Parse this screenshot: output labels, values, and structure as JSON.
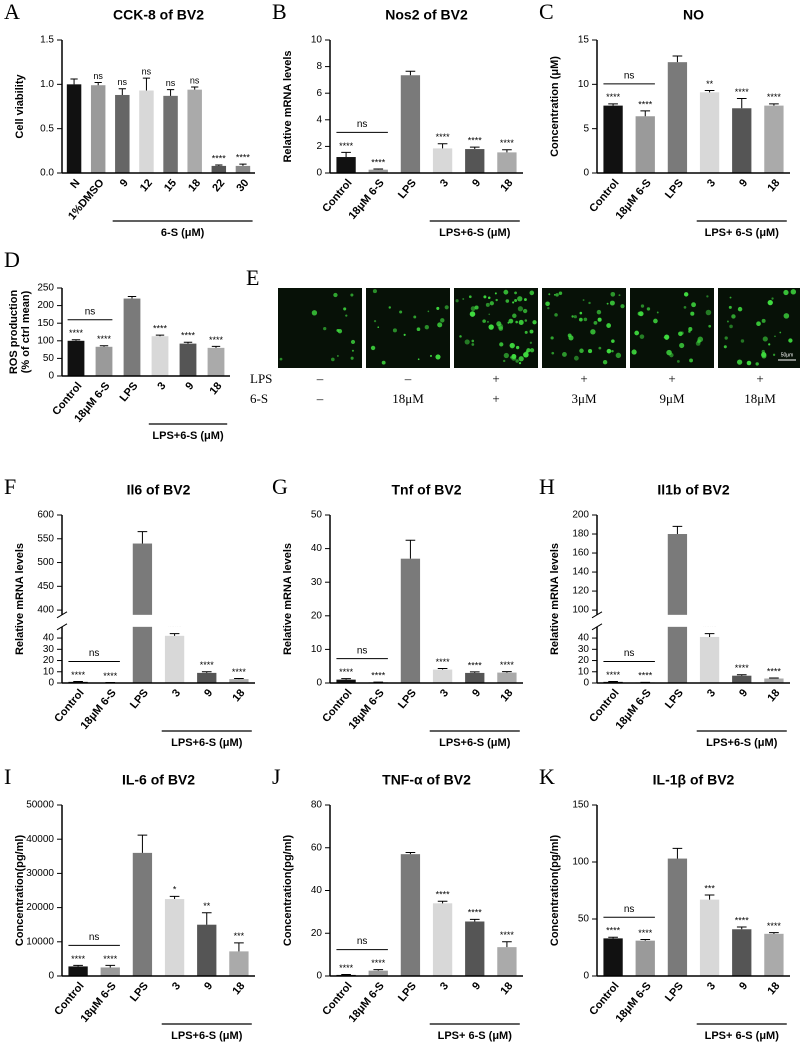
{
  "chart_data": [
    {
      "panel": "A",
      "type": "bar",
      "title": "CCK-8 of BV2",
      "ylabel": "Cell viability",
      "categories": [
        "N",
        "1%DMSO",
        "9",
        "12",
        "15",
        "18",
        "22",
        "30"
      ],
      "values": [
        1.0,
        0.99,
        0.88,
        0.93,
        0.87,
        0.94,
        0.08,
        0.08
      ],
      "errors": [
        0.06,
        0.03,
        0.07,
        0.14,
        0.07,
        0.03,
        0.01,
        0.02
      ],
      "colors": [
        "#111111",
        "#9a9a9a",
        "#666666",
        "#d8d8d8",
        "#707070",
        "#aaaaaa",
        "#555555",
        "#888888"
      ],
      "annotations": [
        null,
        "ns",
        "ns",
        "ns",
        "ns",
        "ns",
        "****",
        "****"
      ],
      "group_label": "6-S (μM)",
      "ylim": [
        0,
        1.5
      ],
      "yticks": [
        {
          "value": 0,
          "label": "0.0"
        },
        {
          "value": 0.5,
          "label": "0.5"
        },
        {
          "value": 1,
          "label": "1.0"
        },
        {
          "value": 1.5,
          "label": "1.5"
        }
      ]
    },
    {
      "panel": "B",
      "type": "bar",
      "title": "Nos2 of BV2",
      "ylabel": "Relative mRNA levels",
      "categories": [
        "Control",
        "18μM 6-S",
        "LPS",
        "3",
        "9",
        "18"
      ],
      "values": [
        1.2,
        0.25,
        7.35,
        1.85,
        1.8,
        1.55
      ],
      "errors": [
        0.35,
        0.05,
        0.3,
        0.35,
        0.15,
        0.2
      ],
      "colors": [
        "#111111",
        "#9a9a9a",
        "#7a7a7a",
        "#d8d8d8",
        "#555555",
        "#aaaaaa"
      ],
      "annotations": [
        "****",
        "****",
        null,
        "****",
        "****",
        "****"
      ],
      "bracket_label": "ns",
      "group_label": "LPS+6-S (μM)",
      "ylim": [
        0,
        10
      ],
      "yticks": [
        0,
        2,
        4,
        6,
        8,
        10
      ]
    },
    {
      "panel": "C",
      "type": "bar",
      "title": "NO",
      "ylabel": "Concentration (μM)",
      "categories": [
        "Control",
        "18μM 6-S",
        "LPS",
        "3",
        "9",
        "18"
      ],
      "values": [
        7.6,
        6.4,
        12.5,
        9.1,
        7.3,
        7.6
      ],
      "errors": [
        0.2,
        0.6,
        0.7,
        0.2,
        1.1,
        0.2
      ],
      "colors": [
        "#111111",
        "#9a9a9a",
        "#7a7a7a",
        "#d8d8d8",
        "#555555",
        "#aaaaaa"
      ],
      "annotations": [
        "****",
        "****",
        null,
        "**",
        "****",
        "****"
      ],
      "bracket_label": "ns",
      "group_label": "LPS+ 6-S (μM)",
      "ylim": [
        0,
        15
      ],
      "yticks": [
        0,
        5,
        10,
        15
      ]
    },
    {
      "panel": "D",
      "type": "bar",
      "ylabel": [
        "ROS production",
        "(% of ctrl mean)"
      ],
      "categories": [
        "Control",
        "18μM 6-S",
        "LPS",
        "3",
        "9",
        "18"
      ],
      "values": [
        100,
        83,
        220,
        113,
        92,
        80
      ],
      "errors": [
        3,
        3,
        6,
        3,
        4,
        4
      ],
      "colors": [
        "#111111",
        "#9a9a9a",
        "#7a7a7a",
        "#d8d8d8",
        "#555555",
        "#aaaaaa"
      ],
      "annotations": [
        "****",
        "****",
        null,
        "****",
        "****",
        "****"
      ],
      "bracket_label": "ns",
      "group_label": "LPS+6-S (μM)",
      "ylim": [
        0,
        250
      ],
      "yticks": [
        0,
        50,
        100,
        150,
        200,
        250
      ]
    },
    {
      "panel": "F",
      "type": "bar",
      "title": "Il6 of BV2",
      "ylabel": "Relative mRNA levels",
      "categories": [
        "Control",
        "18μM 6-S",
        "LPS",
        "3",
        "9",
        "18"
      ],
      "values": [
        1,
        0.3,
        540,
        42,
        9,
        3.5
      ],
      "errors": [
        0.3,
        0.1,
        25,
        2,
        1,
        0.5
      ],
      "colors": [
        "#111111",
        "#9a9a9a",
        "#7a7a7a",
        "#d8d8d8",
        "#555555",
        "#aaaaaa"
      ],
      "annotations": [
        "****",
        "****",
        null,
        "****",
        "****",
        "****"
      ],
      "bracket_label": "ns",
      "group_label": "LPS+6-S (μM)",
      "ylim": [
        0,
        600
      ],
      "ybreak": [
        50,
        390
      ],
      "yticks": [
        0,
        10,
        20,
        30,
        40,
        400,
        450,
        500,
        550,
        600
      ]
    },
    {
      "panel": "G",
      "type": "bar",
      "title": "Tnf of BV2",
      "ylabel": "Relative mRNA levels",
      "categories": [
        "Control",
        "18μM 6-S",
        "LPS",
        "3",
        "9",
        "18"
      ],
      "values": [
        1,
        0.2,
        37,
        4,
        3,
        3.1
      ],
      "errors": [
        0.3,
        0.05,
        5.5,
        0.3,
        0.3,
        0.3
      ],
      "colors": [
        "#111111",
        "#9a9a9a",
        "#7a7a7a",
        "#d8d8d8",
        "#555555",
        "#aaaaaa"
      ],
      "annotations": [
        "****",
        "****",
        null,
        "****",
        "****",
        "****"
      ],
      "bracket_label": "ns",
      "group_label": "LPS+6-S (μM)",
      "ylim": [
        0,
        50
      ],
      "yticks": [
        0,
        10,
        20,
        30,
        40,
        50
      ]
    },
    {
      "panel": "H",
      "type": "bar",
      "title": "Il1b of BV2",
      "ylabel": "Relative mRNA levels",
      "categories": [
        "Control",
        "18μM 6-S",
        "LPS",
        "3",
        "9",
        "18"
      ],
      "values": [
        1,
        0.5,
        180,
        41,
        6.5,
        4
      ],
      "errors": [
        0.3,
        0.1,
        8,
        3,
        0.8,
        0.5
      ],
      "colors": [
        "#111111",
        "#9a9a9a",
        "#7a7a7a",
        "#d8d8d8",
        "#555555",
        "#aaaaaa"
      ],
      "annotations": [
        "****",
        "****",
        null,
        "****",
        "****",
        "****"
      ],
      "bracket_label": "ns",
      "group_label": "LPS+6-S (μM)",
      "ylim": [
        0,
        200
      ],
      "ybreak": [
        50,
        95
      ],
      "yticks": [
        0,
        10,
        20,
        30,
        40,
        100,
        120,
        140,
        160,
        180,
        200
      ]
    },
    {
      "panel": "I",
      "type": "bar",
      "title": "IL-6 of BV2",
      "ylabel": "Concentration(pg/ml)",
      "categories": [
        "Control",
        "18μM 6-S",
        "LPS",
        "3",
        "9",
        "18"
      ],
      "values": [
        2800,
        2500,
        36000,
        22500,
        15000,
        7200
      ],
      "errors": [
        300,
        600,
        5200,
        800,
        3500,
        2500
      ],
      "colors": [
        "#111111",
        "#9a9a9a",
        "#7a7a7a",
        "#d8d8d8",
        "#555555",
        "#aaaaaa"
      ],
      "annotations": [
        "****",
        "****",
        null,
        "*",
        "**",
        "***"
      ],
      "bracket_label": "ns",
      "group_label": "LPS+6-S (μM)",
      "ylim": [
        0,
        50000
      ],
      "yticks": [
        0,
        10000,
        20000,
        30000,
        40000,
        50000
      ]
    },
    {
      "panel": "J",
      "type": "bar",
      "title": "TNF-α of BV2",
      "ylabel": "Concentration(pg/ml)",
      "categories": [
        "Control",
        "18μM 6-S",
        "LPS",
        "3",
        "9",
        "18"
      ],
      "values": [
        0.5,
        2.5,
        57,
        34,
        25.5,
        13.5
      ],
      "errors": [
        0.2,
        0.5,
        0.8,
        1,
        1,
        2.5
      ],
      "colors": [
        "#111111",
        "#9a9a9a",
        "#7a7a7a",
        "#d8d8d8",
        "#555555",
        "#aaaaaa"
      ],
      "annotations": [
        "****",
        "****",
        null,
        "****",
        "****",
        "****"
      ],
      "bracket_label": "ns",
      "group_label": "LPS+ 6-S (μM)",
      "ylim": [
        0,
        80
      ],
      "yticks": [
        0,
        20,
        40,
        60,
        80
      ]
    },
    {
      "panel": "K",
      "type": "bar",
      "title": "IL-1β of BV2",
      "ylabel": "Concentration(pg/ml)",
      "categories": [
        "Control",
        "18μM 6-S",
        "LPS",
        "3",
        "9",
        "18"
      ],
      "values": [
        33,
        31,
        103,
        67,
        41,
        37
      ],
      "errors": [
        1,
        1,
        9,
        4,
        2,
        1
      ],
      "colors": [
        "#111111",
        "#9a9a9a",
        "#7a7a7a",
        "#d8d8d8",
        "#555555",
        "#aaaaaa"
      ],
      "annotations": [
        "****",
        "****",
        null,
        "***",
        "****",
        "****"
      ],
      "bracket_label": "ns",
      "group_label": "LPS+ 6-S (μM)",
      "ylim": [
        0,
        150
      ],
      "yticks": [
        0,
        50,
        100,
        150
      ]
    }
  ],
  "panel_e": {
    "panel": "E",
    "rows": [
      {
        "label": "LPS",
        "cells": [
          "–",
          "–",
          "+",
          "+",
          "+",
          "+"
        ]
      },
      {
        "label": "6-S",
        "cells": [
          "–",
          "18μM",
          "+",
          "3μM",
          "9μM",
          "18μM"
        ]
      }
    ],
    "scale_bar": "50μm"
  }
}
